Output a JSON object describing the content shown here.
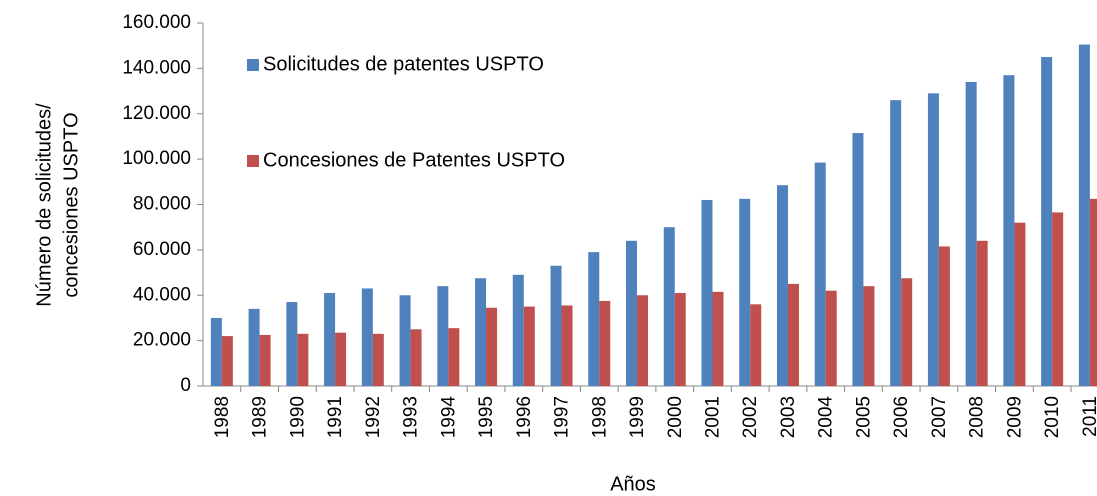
{
  "chart_data": {
    "type": "bar",
    "x_label": "Años",
    "y_label": [
      "Número de solicitudes/",
      "concesiones USPTO"
    ],
    "categories": [
      "1988",
      "1989",
      "1990",
      "1991",
      "1992",
      "1993",
      "1994",
      "1995",
      "1996",
      "1997",
      "1998",
      "1999",
      "2000",
      "2001",
      "2002",
      "2003",
      "2004",
      "2005",
      "2006",
      "2007",
      "2008",
      "2009",
      "2010",
      "2011"
    ],
    "series": [
      {
        "name": "Solicitudes de patentes USPTO",
        "color": "#4f81bd",
        "values": [
          30000,
          34000,
          37000,
          41000,
          43000,
          40000,
          44000,
          47500,
          49000,
          53000,
          59000,
          64000,
          70000,
          82000,
          82500,
          88500,
          98500,
          111500,
          126000,
          129000,
          134000,
          137000,
          145000,
          150500
        ]
      },
      {
        "name": "Concesiones de Patentes USPTO",
        "color": "#c0504d",
        "values": [
          22000,
          22500,
          23000,
          23500,
          23000,
          25000,
          25500,
          34500,
          35000,
          35500,
          37500,
          40000,
          41000,
          41500,
          36000,
          45000,
          42000,
          44000,
          47500,
          61500,
          64000,
          72000,
          76500,
          82500
        ]
      }
    ],
    "ylim": [
      0,
      160000
    ],
    "yticks": [
      0,
      {
        "value": 20000,
        "label": "20.000"
      },
      {
        "value": 40000,
        "label": "40.000"
      },
      {
        "value": 60000,
        "label": "60.000"
      },
      {
        "value": 80000,
        "label": "80.000"
      },
      {
        "value": 100000,
        "label": "100.000"
      },
      {
        "value": 120000,
        "label": "120.000"
      },
      {
        "value": 140000,
        "label": "140.000"
      },
      {
        "value": 160000,
        "label": "160.000"
      }
    ],
    "grid": false
  }
}
